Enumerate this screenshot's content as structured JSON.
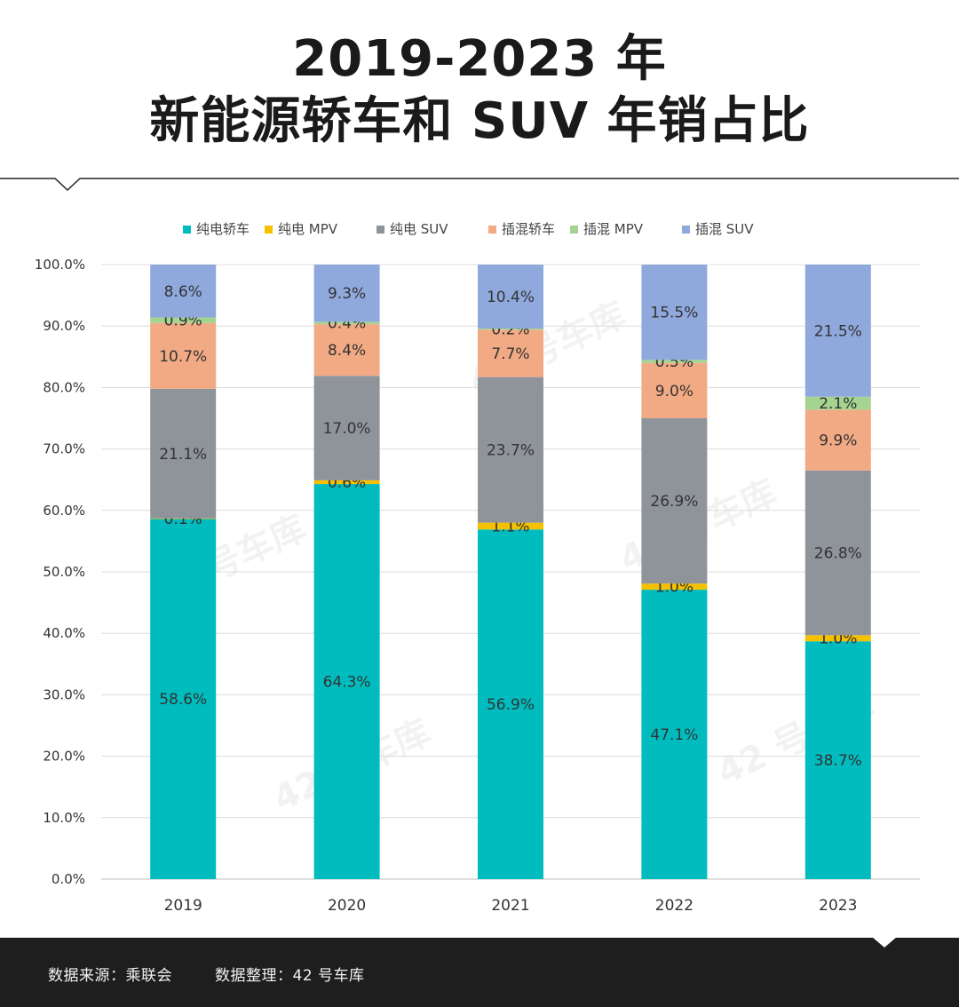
{
  "title": {
    "line1": "2019-2023 年",
    "line2": "新能源轿车和 SUV 年销占比"
  },
  "footer": {
    "source": "数据来源：乘联会",
    "organizer": "数据整理：42 号车库"
  },
  "watermark": "42 号车库",
  "colors": {
    "纯电轿车": "#00bcbf",
    "纯电 MPV": "#f5c000",
    "纯电 SUV": "#8f949a",
    "插混轿车": "#f2aa84",
    "插混 MPV": "#a5d490",
    "插混 SUV": "#8fa9dc"
  },
  "chart_data": {
    "type": "bar",
    "stacked": true,
    "title": "2019-2023 年 新能源轿车和 SUV 年销占比",
    "categories": [
      "2019",
      "2020",
      "2021",
      "2022",
      "2023"
    ],
    "ylim": [
      0,
      100
    ],
    "yticks": [
      "0.0%",
      "10.0%",
      "20.0%",
      "30.0%",
      "40.0%",
      "50.0%",
      "60.0%",
      "70.0%",
      "80.0%",
      "90.0%",
      "100.0%"
    ],
    "legend_position": "top",
    "grid": true,
    "series": [
      {
        "name": "纯电轿车",
        "values": [
          58.6,
          64.3,
          56.9,
          47.1,
          38.7
        ],
        "labels": [
          "58.6%",
          "64.3%",
          "56.9%",
          "47.1%",
          "38.7%"
        ]
      },
      {
        "name": "纯电 MPV",
        "values": [
          0.1,
          0.6,
          1.1,
          1.0,
          1.0
        ],
        "labels": [
          "0.1%",
          "0.6%",
          "1.1%",
          "1.0%",
          "1.0%"
        ]
      },
      {
        "name": "纯电 SUV",
        "values": [
          21.1,
          17.0,
          23.7,
          26.9,
          26.8
        ],
        "labels": [
          "21.1%",
          "17.0%",
          "23.7%",
          "26.9%",
          "26.8%"
        ]
      },
      {
        "name": "插混轿车",
        "values": [
          10.7,
          8.4,
          7.7,
          9.0,
          9.9
        ],
        "labels": [
          "10.7%",
          "8.4%",
          "7.7%",
          "9.0%",
          "9.9%"
        ]
      },
      {
        "name": "插混 MPV",
        "values": [
          0.9,
          0.4,
          0.2,
          0.5,
          2.1
        ],
        "labels": [
          "0.9%",
          "0.4%",
          "0.2%",
          "0.5%",
          "2.1%"
        ]
      },
      {
        "name": "插混 SUV",
        "values": [
          8.6,
          9.3,
          10.4,
          15.5,
          21.5
        ],
        "labels": [
          "8.6%",
          "9.3%",
          "10.4%",
          "15.5%",
          "21.5%"
        ]
      }
    ]
  }
}
